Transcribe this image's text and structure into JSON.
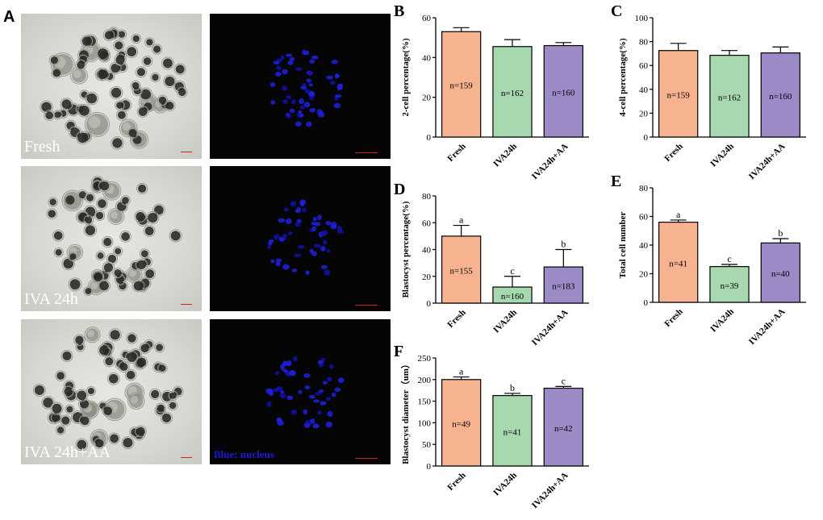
{
  "panels": {
    "A": {
      "letter": "A",
      "row_labels": [
        "Fresh",
        "IVA 24h",
        "IVA 24h+AA"
      ],
      "stain_label": "Blue: nucleus"
    }
  },
  "colors": {
    "fresh": "#f7b28f",
    "iva24h": "#a8d8b0",
    "iva24hAA": "#9b8ac6"
  },
  "chart_data": [
    {
      "letter": "B",
      "type": "bar",
      "categories": [
        "Fresh",
        "IVA24h",
        "IVA24h+AA"
      ],
      "values": [
        53,
        45.5,
        46
      ],
      "errors": [
        2,
        3.5,
        1.5
      ],
      "n_labels": [
        "n=159",
        "n=162",
        "n=160"
      ],
      "letters": [
        "",
        "",
        ""
      ],
      "ylabel": "2-cell percentage(%)",
      "ylim": [
        0,
        60
      ],
      "yticks": [
        0,
        20,
        40,
        60
      ]
    },
    {
      "letter": "C",
      "type": "bar",
      "categories": [
        "Fresh",
        "IVA24h",
        "IVA24h+AA"
      ],
      "values": [
        72.5,
        68.5,
        70.5
      ],
      "errors": [
        6,
        4,
        5
      ],
      "n_labels": [
        "n=159",
        "n=162",
        "n=160"
      ],
      "letters": [
        "",
        "",
        ""
      ],
      "ylabel": "4-cell percentage(%)",
      "ylim": [
        0,
        100
      ],
      "yticks": [
        0,
        20,
        40,
        60,
        80,
        100
      ]
    },
    {
      "letter": "D",
      "type": "bar",
      "categories": [
        "Fresh",
        "IVA24h",
        "IVA24h+AA"
      ],
      "values": [
        50,
        12,
        27
      ],
      "errors": [
        8,
        8,
        13
      ],
      "n_labels": [
        "n=155",
        "n=160",
        "n=183"
      ],
      "letters": [
        "a",
        "c",
        "b"
      ],
      "ylabel": "Blastocyst percentage(%)",
      "ylim": [
        0,
        80
      ],
      "yticks": [
        0,
        20,
        40,
        60,
        80
      ]
    },
    {
      "letter": "E",
      "type": "bar",
      "categories": [
        "Fresh",
        "IVA24h",
        "IVA24h+AA"
      ],
      "values": [
        56,
        25,
        41.5
      ],
      "errors": [
        1.5,
        1.5,
        3
      ],
      "n_labels": [
        "n=41",
        "n=39",
        "n=40"
      ],
      "letters": [
        "a",
        "c",
        "b"
      ],
      "ylabel": "Total cell number",
      "ylim": [
        0,
        80
      ],
      "yticks": [
        0,
        20,
        40,
        60,
        80
      ]
    },
    {
      "letter": "F",
      "type": "bar",
      "categories": [
        "Fresh",
        "IVA24h",
        "IVA24h+AA"
      ],
      "values": [
        200,
        163,
        180
      ],
      "errors": [
        6,
        5,
        4
      ],
      "n_labels": [
        "n=49",
        "n=41",
        "n=42"
      ],
      "letters": [
        "a",
        "b",
        "c"
      ],
      "ylabel": "Blastocyst diameter（um）",
      "ylim": [
        0,
        250
      ],
      "yticks": [
        0,
        50,
        100,
        150,
        200,
        250
      ]
    }
  ]
}
